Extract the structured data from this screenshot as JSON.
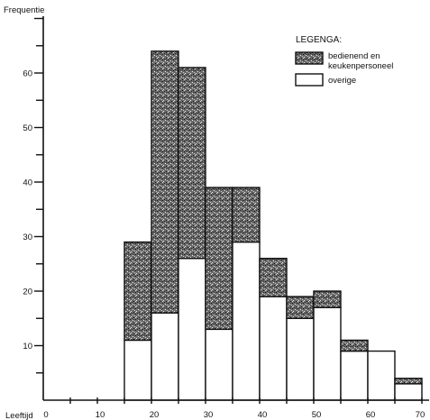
{
  "chart_data": {
    "type": "bar",
    "stacked": true,
    "ylabel": "Frequentie",
    "xlabel": "Leeftijd",
    "x_ticks": [
      "0",
      "10",
      "20",
      "30",
      "40",
      "50",
      "60",
      "70"
    ],
    "y_ticks": [
      "10",
      "20",
      "30",
      "40",
      "50",
      "60"
    ],
    "ylim": [
      0,
      70
    ],
    "xlim": [
      0,
      70
    ],
    "bin_width": 5,
    "bin_starts": [
      15,
      20,
      25,
      30,
      35,
      40,
      45,
      50,
      55,
      60,
      65
    ],
    "legend_title": "LEGENGA:",
    "legend_placement": "top-right",
    "series": [
      {
        "name": "overige",
        "values": [
          11,
          16,
          26,
          13,
          29,
          19,
          15,
          17,
          9,
          9,
          3
        ],
        "fill": "#ffffff"
      },
      {
        "name": "bedienend en keukenpersoneel",
        "values": [
          18,
          48,
          35,
          26,
          10,
          7,
          4,
          3,
          2,
          0,
          1
        ],
        "fill": "#555555"
      }
    ]
  }
}
